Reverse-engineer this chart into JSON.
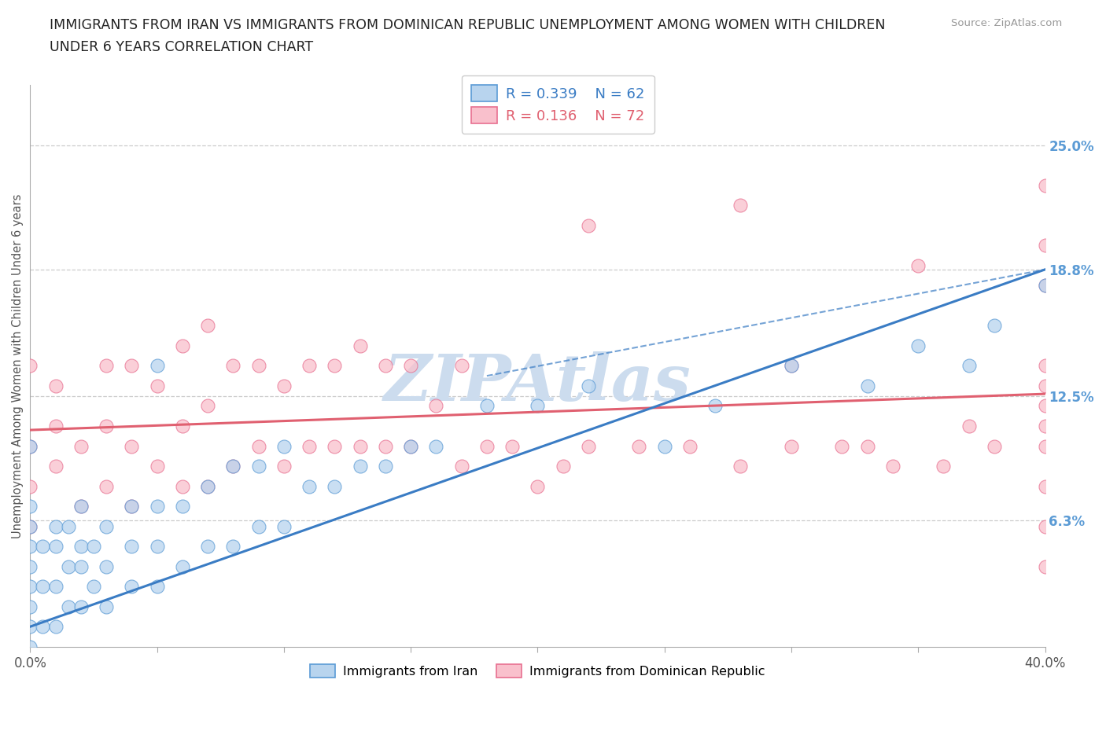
{
  "title_line1": "IMMIGRANTS FROM IRAN VS IMMIGRANTS FROM DOMINICAN REPUBLIC UNEMPLOYMENT AMONG WOMEN WITH CHILDREN",
  "title_line2": "UNDER 6 YEARS CORRELATION CHART",
  "source_text": "Source: ZipAtlas.com",
  "ylabel": "Unemployment Among Women with Children Under 6 years",
  "xlim": [
    0.0,
    0.4
  ],
  "ylim": [
    0.0,
    0.28
  ],
  "xtick_left_label": "0.0%",
  "xtick_right_label": "40.0%",
  "right_ytick_values": [
    0.063,
    0.125,
    0.188,
    0.25
  ],
  "right_ytick_labels": [
    "6.3%",
    "12.5%",
    "18.8%",
    "25.0%"
  ],
  "legend_iran_r": "R = 0.339",
  "legend_iran_n": "N = 62",
  "legend_dr_r": "R = 0.136",
  "legend_dr_n": "N = 72",
  "iran_fill_color": "#b8d4ee",
  "iran_edge_color": "#5b9bd5",
  "dr_fill_color": "#f9c0cc",
  "dr_edge_color": "#e87090",
  "iran_line_color": "#3a7cc4",
  "dr_line_color": "#e06070",
  "watermark_color": "#ccdcee",
  "background_color": "#ffffff",
  "grid_color": "#cccccc",
  "title_color": "#222222",
  "axis_label_color": "#5b9bd5",
  "iran_trend_x0": 0.0,
  "iran_trend_y0": 0.01,
  "iran_trend_x1": 0.4,
  "iran_trend_y1": 0.188,
  "dr_trend_x0": 0.0,
  "dr_trend_y0": 0.108,
  "dr_trend_x1": 0.4,
  "dr_trend_y1": 0.126,
  "iran_scatter_x": [
    0.0,
    0.0,
    0.0,
    0.0,
    0.0,
    0.0,
    0.0,
    0.0,
    0.0,
    0.005,
    0.005,
    0.005,
    0.01,
    0.01,
    0.01,
    0.01,
    0.015,
    0.015,
    0.015,
    0.02,
    0.02,
    0.02,
    0.02,
    0.025,
    0.025,
    0.03,
    0.03,
    0.03,
    0.04,
    0.04,
    0.04,
    0.05,
    0.05,
    0.05,
    0.05,
    0.06,
    0.06,
    0.07,
    0.07,
    0.08,
    0.08,
    0.09,
    0.09,
    0.1,
    0.1,
    0.11,
    0.12,
    0.13,
    0.14,
    0.15,
    0.16,
    0.18,
    0.2,
    0.22,
    0.25,
    0.27,
    0.3,
    0.33,
    0.35,
    0.37,
    0.38,
    0.4
  ],
  "iran_scatter_y": [
    0.0,
    0.01,
    0.02,
    0.03,
    0.04,
    0.05,
    0.06,
    0.07,
    0.1,
    0.01,
    0.03,
    0.05,
    0.01,
    0.03,
    0.05,
    0.06,
    0.02,
    0.04,
    0.06,
    0.02,
    0.04,
    0.05,
    0.07,
    0.03,
    0.05,
    0.02,
    0.04,
    0.06,
    0.03,
    0.05,
    0.07,
    0.03,
    0.05,
    0.07,
    0.14,
    0.04,
    0.07,
    0.05,
    0.08,
    0.05,
    0.09,
    0.06,
    0.09,
    0.06,
    0.1,
    0.08,
    0.08,
    0.09,
    0.09,
    0.1,
    0.1,
    0.12,
    0.12,
    0.13,
    0.1,
    0.12,
    0.14,
    0.13,
    0.15,
    0.14,
    0.16,
    0.18
  ],
  "dr_scatter_x": [
    0.0,
    0.0,
    0.0,
    0.0,
    0.01,
    0.01,
    0.01,
    0.02,
    0.02,
    0.03,
    0.03,
    0.03,
    0.04,
    0.04,
    0.04,
    0.05,
    0.05,
    0.06,
    0.06,
    0.06,
    0.07,
    0.07,
    0.07,
    0.08,
    0.08,
    0.09,
    0.09,
    0.1,
    0.1,
    0.11,
    0.11,
    0.12,
    0.12,
    0.13,
    0.13,
    0.14,
    0.14,
    0.15,
    0.15,
    0.16,
    0.17,
    0.17,
    0.18,
    0.19,
    0.2,
    0.21,
    0.22,
    0.22,
    0.24,
    0.26,
    0.28,
    0.28,
    0.3,
    0.3,
    0.32,
    0.33,
    0.34,
    0.35,
    0.36,
    0.37,
    0.38,
    0.4,
    0.4,
    0.4,
    0.4,
    0.4,
    0.4,
    0.4,
    0.4,
    0.4,
    0.4,
    0.4
  ],
  "dr_scatter_y": [
    0.06,
    0.08,
    0.1,
    0.14,
    0.09,
    0.11,
    0.13,
    0.07,
    0.1,
    0.08,
    0.11,
    0.14,
    0.07,
    0.1,
    0.14,
    0.09,
    0.13,
    0.08,
    0.11,
    0.15,
    0.08,
    0.12,
    0.16,
    0.09,
    0.14,
    0.1,
    0.14,
    0.09,
    0.13,
    0.1,
    0.14,
    0.1,
    0.14,
    0.1,
    0.15,
    0.1,
    0.14,
    0.1,
    0.14,
    0.12,
    0.09,
    0.14,
    0.1,
    0.1,
    0.08,
    0.09,
    0.1,
    0.21,
    0.1,
    0.1,
    0.09,
    0.22,
    0.1,
    0.14,
    0.1,
    0.1,
    0.09,
    0.19,
    0.09,
    0.11,
    0.1,
    0.04,
    0.06,
    0.08,
    0.1,
    0.11,
    0.12,
    0.13,
    0.14,
    0.18,
    0.2,
    0.23
  ]
}
